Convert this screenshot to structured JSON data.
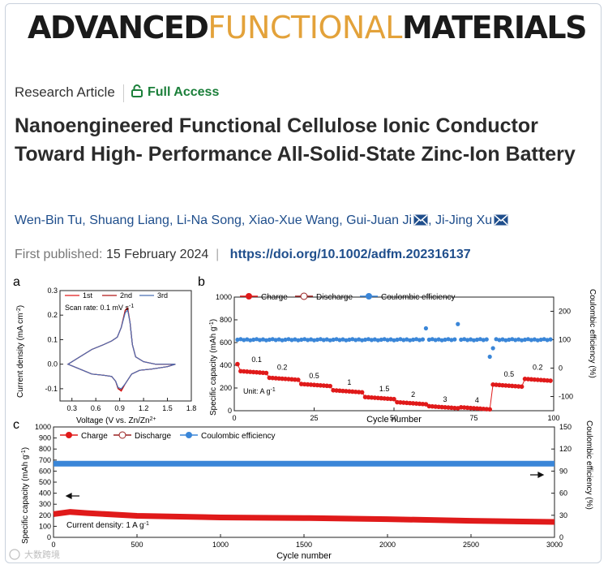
{
  "journal": {
    "part1": "ADVANCED",
    "part2": "FUNCTIONAL",
    "part3": "MATERIALS"
  },
  "article_type": "Research Article",
  "access": "Full Access",
  "title": "Nanoengineered Functional Cellulose Ionic Conductor Toward High- Performance All-Solid-State Zinc-Ion Battery",
  "authors": [
    "Wen-Bin Tu",
    "Shuang Liang",
    "Li-Na Song",
    "Xiao-Xue Wang",
    "Gui-Juan Ji",
    "Ji-Jing Xu"
  ],
  "published_label": "First published:",
  "published_date": "15 February 2024",
  "doi": "https://doi.org/10.1002/adfm.202316137",
  "watermark": "大数跨境",
  "colors": {
    "charge": "#e01a1a",
    "discharge": "#9a2020",
    "ce": "#3a86d8",
    "cv3": "#4a6fb5",
    "gold": "#e3a23a",
    "green": "#1b7f3a",
    "link": "#1f4e8c"
  },
  "chart_data": [
    {
      "panel": "a",
      "type": "line",
      "xlabel": "Voltage (V vs. Zn/Zn2+)",
      "ylabel": "Current density (mA cm-2)",
      "xlim": [
        0.15,
        1.8
      ],
      "ylim": [
        -0.15,
        0.3
      ],
      "xticks": [
        "0.3",
        "0.6",
        "0.9",
        "1.2",
        "1.5",
        "1.8"
      ],
      "yticks": [
        "-0.1",
        "0.0",
        "0.1",
        "0.2",
        "0.3"
      ],
      "annotation": "Scan rate: 0.1 mV s-1",
      "series": [
        {
          "name": "1st",
          "color": "#e01a1a",
          "x": [
            0.25,
            0.4,
            0.55,
            0.7,
            0.8,
            0.87,
            0.92,
            0.97,
            1.0,
            1.03,
            1.06,
            1.1,
            1.2,
            1.35,
            1.5,
            1.6,
            1.5,
            1.3,
            1.15,
            1.05,
            0.97,
            0.92,
            0.88,
            0.85,
            0.8,
            0.7,
            0.55,
            0.4,
            0.25
          ],
          "y": [
            0.0,
            0.03,
            0.06,
            0.08,
            0.095,
            0.11,
            0.15,
            0.22,
            0.23,
            0.17,
            0.08,
            0.03,
            0.01,
            0.0,
            0.0,
            0.0,
            -0.01,
            -0.02,
            -0.025,
            -0.04,
            -0.08,
            -0.11,
            -0.1,
            -0.07,
            -0.05,
            -0.045,
            -0.04,
            -0.02,
            0.0
          ]
        },
        {
          "name": "2nd",
          "color": "#b01818",
          "x": [
            0.25,
            0.4,
            0.55,
            0.7,
            0.8,
            0.87,
            0.92,
            0.97,
            1.0,
            1.03,
            1.06,
            1.1,
            1.2,
            1.35,
            1.5,
            1.6,
            1.5,
            1.3,
            1.15,
            1.05,
            0.97,
            0.92,
            0.88,
            0.85,
            0.8,
            0.7,
            0.55,
            0.4,
            0.25
          ],
          "y": [
            0.0,
            0.03,
            0.06,
            0.08,
            0.095,
            0.11,
            0.15,
            0.22,
            0.225,
            0.17,
            0.08,
            0.03,
            0.01,
            0.0,
            0.0,
            0.0,
            -0.01,
            -0.02,
            -0.025,
            -0.04,
            -0.08,
            -0.105,
            -0.1,
            -0.07,
            -0.05,
            -0.045,
            -0.04,
            -0.02,
            0.0
          ]
        },
        {
          "name": "3rd",
          "color": "#4a6fb5",
          "x": [
            0.25,
            0.4,
            0.55,
            0.7,
            0.8,
            0.87,
            0.92,
            0.97,
            1.0,
            1.03,
            1.06,
            1.1,
            1.2,
            1.35,
            1.5,
            1.6,
            1.5,
            1.3,
            1.15,
            1.05,
            0.97,
            0.92,
            0.88,
            0.85,
            0.8,
            0.7,
            0.55,
            0.4,
            0.25
          ],
          "y": [
            0.0,
            0.03,
            0.06,
            0.08,
            0.095,
            0.11,
            0.15,
            0.21,
            0.22,
            0.17,
            0.08,
            0.03,
            0.01,
            0.0,
            0.0,
            0.0,
            -0.01,
            -0.02,
            -0.025,
            -0.04,
            -0.08,
            -0.1,
            -0.095,
            -0.07,
            -0.05,
            -0.045,
            -0.04,
            -0.02,
            0.0
          ]
        }
      ]
    },
    {
      "panel": "b",
      "type": "scatter",
      "xlabel": "Cycle number",
      "ylabel": "Specific capacity (mAh g-1)",
      "ylabel2": "Coulombic efficiency (%)",
      "xlim": [
        0,
        100
      ],
      "ylim": [
        0,
        1000
      ],
      "y2lim": [
        -150,
        250
      ],
      "xticks": [
        "0",
        "25",
        "50",
        "75",
        "100"
      ],
      "yticks": [
        "0",
        "200",
        "400",
        "600",
        "800",
        "1000"
      ],
      "y2ticks": [
        "-100",
        "0",
        "100",
        "200"
      ],
      "unit_note": "Unit: A g-1",
      "legend": [
        "Charge",
        "Discharge",
        "Coulombic efficiency"
      ],
      "rate_labels": [
        {
          "text": "0.1",
          "x": 7,
          "y": 430
        },
        {
          "text": "0.2",
          "x": 15,
          "y": 360
        },
        {
          "text": "0.5",
          "x": 25,
          "y": 285
        },
        {
          "text": "1",
          "x": 36,
          "y": 230
        },
        {
          "text": "1.5",
          "x": 47,
          "y": 170
        },
        {
          "text": "2",
          "x": 56,
          "y": 120
        },
        {
          "text": "3",
          "x": 66,
          "y": 80
        },
        {
          "text": "4",
          "x": 76,
          "y": 70
        },
        {
          "text": "0.5",
          "x": 86,
          "y": 300
        },
        {
          "text": "0.2",
          "x": 95,
          "y": 360
        }
      ],
      "capacity_segments": [
        {
          "from": 1,
          "to": 10,
          "value": 350
        },
        {
          "from": 11,
          "to": 20,
          "value": 290
        },
        {
          "from": 21,
          "to": 30,
          "value": 235
        },
        {
          "from": 31,
          "to": 40,
          "value": 180
        },
        {
          "from": 41,
          "to": 50,
          "value": 120
        },
        {
          "from": 51,
          "to": 60,
          "value": 75
        },
        {
          "from": 61,
          "to": 70,
          "value": 40
        },
        {
          "from": 71,
          "to": 80,
          "value": 30
        },
        {
          "from": 81,
          "to": 90,
          "value": 230
        },
        {
          "from": 91,
          "to": 99,
          "value": 280
        }
      ],
      "ce_baseline": 100,
      "ce_spikes": [
        {
          "x": 60,
          "y": 140
        },
        {
          "x": 70,
          "y": 155
        },
        {
          "x": 80,
          "y": 40
        },
        {
          "x": 81,
          "y": 70
        }
      ]
    },
    {
      "panel": "c",
      "type": "scatter",
      "xlabel": "Cycle number",
      "ylabel": "Specific capacity (mAh g-1)",
      "ylabel2": "Coulombic efficiency (%)",
      "xlim": [
        0,
        3000
      ],
      "ylim": [
        0,
        1000
      ],
      "y2lim": [
        0,
        150
      ],
      "xticks": [
        "0",
        "500",
        "1000",
        "1500",
        "2000",
        "2500",
        "3000"
      ],
      "yticks": [
        "0",
        "100",
        "200",
        "300",
        "400",
        "500",
        "600",
        "700",
        "800",
        "900",
        "1000"
      ],
      "y2ticks": [
        "0",
        "30",
        "60",
        "90",
        "120",
        "150"
      ],
      "annotation": "Current density: 1 A g-1",
      "legend": [
        "Charge",
        "Discharge",
        "Coulombic efficiency"
      ],
      "capacity": {
        "x": [
          0,
          100,
          200,
          500,
          1000,
          1500,
          2000,
          2500,
          3000
        ],
        "y": [
          210,
          230,
          220,
          195,
          180,
          175,
          165,
          150,
          140
        ]
      },
      "ce": {
        "x": [
          0,
          3000
        ],
        "y": [
          100,
          100
        ]
      }
    }
  ]
}
